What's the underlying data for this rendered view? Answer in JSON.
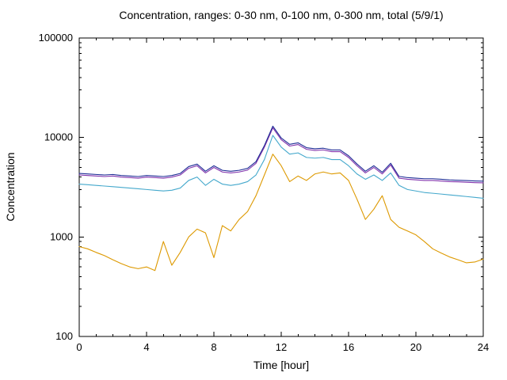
{
  "chart_data": {
    "type": "line",
    "title": "Concentration, ranges: 0-30 nm, 0-100 nm, 0-300 nm, total (5/9/1)",
    "xlabel": "Time [hour]",
    "ylabel": "Concentration",
    "xlim": [
      0,
      24
    ],
    "ylim": [
      100,
      100000
    ],
    "yscale": "log",
    "grid": false,
    "legend": "none",
    "xticks": [
      0,
      4,
      8,
      12,
      16,
      20,
      24
    ],
    "yticks": [
      100,
      1000,
      10000,
      100000
    ],
    "x": [
      0,
      0.5,
      1,
      1.5,
      2,
      2.5,
      3,
      3.5,
      4,
      4.5,
      5,
      5.5,
      6,
      6.5,
      7,
      7.5,
      8,
      8.5,
      9,
      9.5,
      10,
      10.5,
      11,
      11.5,
      12,
      12.5,
      13,
      13.5,
      14,
      14.5,
      15,
      15.5,
      16,
      16.5,
      17,
      17.5,
      18,
      18.5,
      19,
      19.5,
      20,
      20.5,
      21,
      21.5,
      22,
      22.5,
      23,
      23.5,
      24
    ],
    "series": [
      {
        "name": "0-30 nm",
        "color": "#dd9900",
        "values": [
          800,
          760,
          700,
          650,
          590,
          540,
          500,
          480,
          500,
          460,
          900,
          520,
          700,
          1000,
          1200,
          1100,
          620,
          1300,
          1150,
          1500,
          1800,
          2600,
          4200,
          6800,
          5200,
          3600,
          4100,
          3700,
          4300,
          4500,
          4300,
          4400,
          3700,
          2400,
          1500,
          1900,
          2600,
          1500,
          1250,
          1150,
          1050,
          900,
          760,
          690,
          630,
          590,
          550,
          560,
          600
        ]
      },
      {
        "name": "0-100 nm",
        "color": "#44a8cc",
        "values": [
          3400,
          3350,
          3300,
          3250,
          3200,
          3150,
          3100,
          3050,
          3000,
          2950,
          2900,
          2950,
          3100,
          3700,
          4000,
          3300,
          3800,
          3400,
          3300,
          3400,
          3600,
          4200,
          6000,
          10500,
          8000,
          6800,
          7000,
          6300,
          6200,
          6300,
          6000,
          6000,
          5200,
          4300,
          3800,
          4200,
          3700,
          4400,
          3300,
          3000,
          2900,
          2800,
          2750,
          2700,
          2650,
          2600,
          2550,
          2500,
          2450
        ]
      },
      {
        "name": "0-300 nm",
        "color": "#8133ad",
        "values": [
          4200,
          4150,
          4100,
          4050,
          4100,
          4000,
          3950,
          3900,
          4000,
          3950,
          3900,
          4000,
          4200,
          4900,
          5200,
          4400,
          5000,
          4500,
          4400,
          4500,
          4700,
          5500,
          8000,
          12500,
          9500,
          8200,
          8500,
          7600,
          7400,
          7500,
          7200,
          7200,
          6300,
          5200,
          4400,
          5000,
          4300,
          5300,
          3900,
          3800,
          3750,
          3700,
          3700,
          3650,
          3600,
          3580,
          3550,
          3520,
          3500
        ]
      },
      {
        "name": "total",
        "color": "#1f2d96",
        "values": [
          4350,
          4300,
          4250,
          4200,
          4250,
          4150,
          4100,
          4050,
          4150,
          4100,
          4050,
          4150,
          4350,
          5100,
          5400,
          4580,
          5200,
          4680,
          4580,
          4680,
          4890,
          5720,
          8300,
          13000,
          9880,
          8530,
          8840,
          7900,
          7700,
          7800,
          7490,
          7490,
          6550,
          5410,
          4580,
          5200,
          4470,
          5510,
          4060,
          3950,
          3900,
          3850,
          3850,
          3800,
          3740,
          3720,
          3690,
          3660,
          3640
        ]
      }
    ]
  }
}
